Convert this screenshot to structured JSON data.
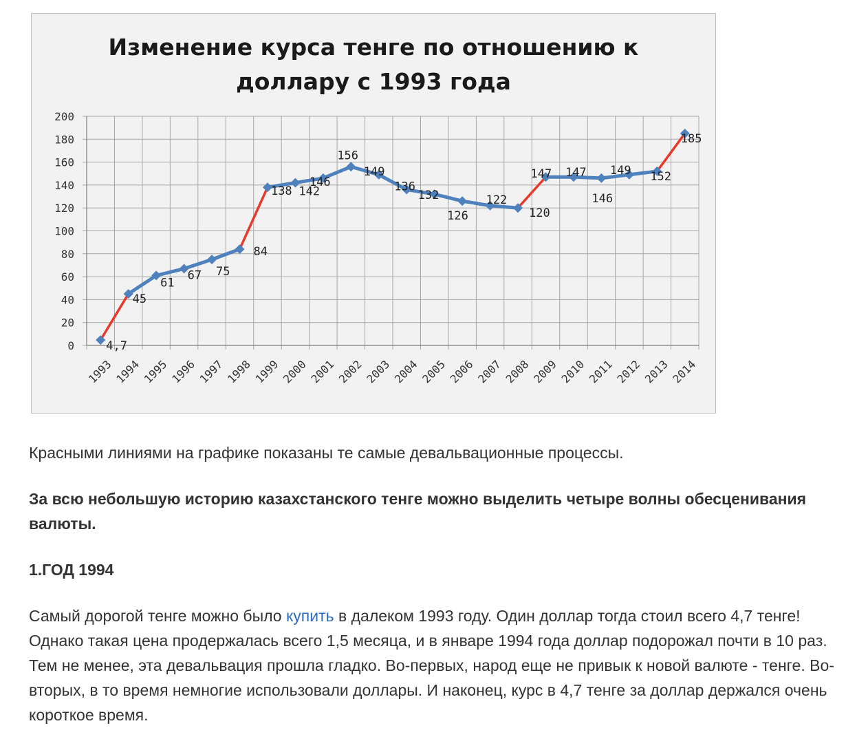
{
  "chart_data": {
    "type": "line",
    "title_lines": [
      "Изменение курса тенге по отношению к",
      "доллару с 1993 года"
    ],
    "categories": [
      "1993",
      "1994",
      "1995",
      "1996",
      "1997",
      "1998",
      "1999",
      "2000",
      "2001",
      "2002",
      "2003",
      "2004",
      "2005",
      "2006",
      "2007",
      "2008",
      "2009",
      "2010",
      "2011",
      "2012",
      "2013",
      "2014"
    ],
    "values": [
      4.7,
      45,
      61,
      67,
      75,
      84,
      138,
      142,
      146,
      156,
      149,
      136,
      132,
      126,
      122,
      120,
      147,
      147,
      146,
      149,
      152,
      185
    ],
    "data_labels": [
      "4,7",
      "45",
      "61",
      "67",
      "75",
      "84",
      "138",
      "142",
      "146",
      "156",
      "149",
      "136",
      "132",
      "126",
      "122",
      "120",
      "147",
      "147",
      "146",
      "149",
      "152",
      "185"
    ],
    "ylim": [
      0,
      200
    ],
    "yticks": [
      0,
      20,
      40,
      60,
      80,
      100,
      120,
      140,
      160,
      180,
      200
    ],
    "grid": true,
    "legend": "none",
    "devaluation_segments": [
      0,
      5,
      15,
      20
    ],
    "colors": {
      "line": "#4f81bd",
      "devaluation": "#e8392a",
      "grid": "#a6a6a6",
      "plot_bg": "#f2f2f2"
    }
  },
  "article": {
    "p1": "Красными линиями на графике показаны те самые девальвационные процессы.",
    "p2": "За всю небольшую историю казахстанского тенге можно выделить четыре волны обесценивания валюты.",
    "p3": "1.ГОД 1994",
    "p4_before": "Самый дорогой тенге можно было ",
    "p4_link": "купить",
    "p4_after": " в далеком 1993 году. Один доллар тогда стоил всего 4,7 тенге! Однако такая цена продержалась всего 1,5 месяца, и в январе 1994 года доллар подорожал почти в 10 раз. Тем не менее, эта девальвация прошла гладко. Во-первых, народ еще не привык к новой валюте - тенге. Во-вторых, в то время немногие использовали доллары. И наконец, курс в 4,7 тенге за доллар держался очень короткое время."
  }
}
